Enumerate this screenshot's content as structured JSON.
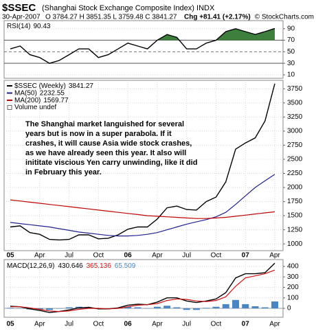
{
  "header": {
    "symbol": "$SSEC",
    "name": "(Shanghai Stock Exchange Composite Index) INDX",
    "date": "30-Apr-2007",
    "ohlc": "O 3784.27 H 3851.35 L 3759.48 C 3841.27",
    "change": "Chg +81.41 (+2.17%)",
    "copyright": "© StockCharts.com"
  },
  "chart_data": [
    {
      "type": "line",
      "ylim": [
        4,
        104
      ],
      "yticks": [
        10,
        30,
        50,
        70,
        90
      ],
      "grid": true,
      "overbought_fill": "#3d7f3d",
      "series": [
        {
          "name": "RSI(14)",
          "color": "#000000",
          "values": [
            55,
            60,
            45,
            40,
            30,
            35,
            45,
            55,
            55,
            40,
            45,
            55,
            65,
            60,
            55,
            70,
            80,
            75,
            55,
            55,
            65,
            70,
            85,
            90,
            85,
            80,
            85,
            90.43
          ]
        }
      ]
    },
    {
      "type": "line",
      "ylim": [
        880,
        3900
      ],
      "yticks": [
        1000,
        1250,
        1500,
        1750,
        2000,
        2250,
        2500,
        2750,
        3000,
        3250,
        3500,
        3750
      ],
      "grid": true,
      "categories": [
        "05",
        null,
        null,
        "Apr",
        null,
        null,
        "Jul",
        null,
        null,
        "Oct",
        null,
        null,
        "06",
        null,
        null,
        "Apr",
        null,
        null,
        "Jul",
        null,
        null,
        "Oct",
        null,
        null,
        "07",
        null,
        null,
        "Apr"
      ],
      "series": [
        {
          "name": "$SSEC (Weekly)",
          "color": "#000000",
          "values": [
            1300,
            1320,
            1200,
            1170,
            1080,
            1070,
            1080,
            1160,
            1160,
            1090,
            1100,
            1160,
            1260,
            1300,
            1300,
            1440,
            1640,
            1670,
            1610,
            1600,
            1750,
            1830,
            2100,
            2680,
            2790,
            2880,
            3180,
            3841.27
          ]
        },
        {
          "name": "MA(50)",
          "color": "#1f1f8f",
          "values": [
            1380,
            1360,
            1340,
            1320,
            1300,
            1270,
            1240,
            1210,
            1190,
            1170,
            1150,
            1140,
            1140,
            1150,
            1170,
            1200,
            1250,
            1300,
            1350,
            1390,
            1430,
            1480,
            1560,
            1700,
            1850,
            2000,
            2120,
            2232.55
          ]
        },
        {
          "name": "MA(200)",
          "color": "#c00000",
          "values": [
            1780,
            1760,
            1740,
            1720,
            1700,
            1680,
            1660,
            1640,
            1620,
            1600,
            1580,
            1560,
            1540,
            1520,
            1500,
            1490,
            1480,
            1470,
            1460,
            1450,
            1450,
            1460,
            1470,
            1490,
            1510,
            1530,
            1550,
            1569.77
          ]
        }
      ],
      "legend_extra": "Volume undef",
      "annotation": [
        "The Shanghai market languished for several",
        "years but is now in a super parabola. If it",
        "crashes, it will cause Asia wide stock crashes,",
        "as we have already seen this year. It also will",
        "inititate viscious Yen carry unwinding, like it did",
        "in February this year."
      ],
      "annotation_color": "#22bb22"
    },
    {
      "type": "combo",
      "ylim": [
        -85,
        465
      ],
      "yticks": [
        0,
        100,
        200,
        300,
        400
      ],
      "grid": true,
      "legend_title": "MACD(12,26,9)",
      "categories": [
        "05",
        null,
        null,
        "Apr",
        null,
        null,
        "Jul",
        null,
        null,
        "Oct",
        null,
        null,
        "06",
        null,
        null,
        "Apr",
        null,
        null,
        "Jul",
        null,
        null,
        "Oct",
        null,
        null,
        "07",
        null,
        null,
        "Apr"
      ],
      "series": [
        {
          "name": "MACD",
          "mark": "line",
          "color": "#000000",
          "values": [
            20,
            15,
            -5,
            -20,
            -40,
            -30,
            -15,
            5,
            10,
            -5,
            -5,
            5,
            30,
            40,
            35,
            60,
            100,
            100,
            70,
            55,
            70,
            90,
            150,
            290,
            330,
            330,
            340,
            430.646
          ]
        },
        {
          "name": "Signal",
          "mark": "line",
          "color": "#d01010",
          "values": [
            15,
            15,
            5,
            -10,
            -25,
            -30,
            -25,
            -10,
            0,
            0,
            -5,
            0,
            15,
            30,
            35,
            45,
            75,
            90,
            85,
            70,
            65,
            75,
            110,
            210,
            290,
            310,
            330,
            365.136
          ]
        },
        {
          "name": "Histogram",
          "mark": "bar",
          "color": "#4a86c5",
          "values": [
            5,
            0,
            -10,
            -10,
            -15,
            0,
            10,
            15,
            10,
            -5,
            0,
            5,
            15,
            10,
            0,
            15,
            25,
            10,
            -15,
            -15,
            5,
            15,
            40,
            80,
            40,
            20,
            10,
            65.509
          ]
        }
      ]
    }
  ]
}
